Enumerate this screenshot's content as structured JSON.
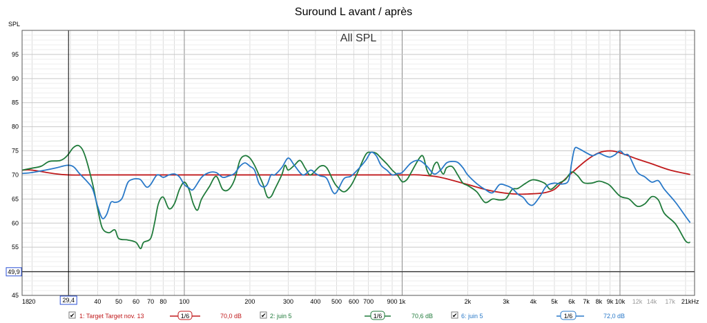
{
  "chart_data": {
    "type": "line",
    "title": "Suround L avant / après",
    "subtitle": "All SPL",
    "ylabel": "SPL",
    "xlabel": "",
    "x_scale": "log",
    "xlim": [
      18,
      22000
    ],
    "ylim": [
      45,
      100
    ],
    "grid": true,
    "y_ticks": [
      {
        "v": 45,
        "label": "45"
      },
      {
        "v": 55,
        "label": "55"
      },
      {
        "v": 60,
        "label": "60"
      },
      {
        "v": 65,
        "label": "65"
      },
      {
        "v": 70,
        "label": "70"
      },
      {
        "v": 75,
        "label": "75"
      },
      {
        "v": 80,
        "label": "80"
      },
      {
        "v": 85,
        "label": "85"
      },
      {
        "v": 90,
        "label": "90"
      },
      {
        "v": 95,
        "label": "95"
      }
    ],
    "x_ticks": [
      {
        "f": 18,
        "label": "18"
      },
      {
        "f": 20,
        "label": "20"
      },
      {
        "f": 40,
        "label": "40"
      },
      {
        "f": 50,
        "label": "50"
      },
      {
        "f": 60,
        "label": "60"
      },
      {
        "f": 70,
        "label": "70"
      },
      {
        "f": 80,
        "label": "80"
      },
      {
        "f": 100,
        "label": "100"
      },
      {
        "f": 200,
        "label": "200"
      },
      {
        "f": 300,
        "label": "300"
      },
      {
        "f": 400,
        "label": "400"
      },
      {
        "f": 500,
        "label": "500"
      },
      {
        "f": 600,
        "label": "600"
      },
      {
        "f": 700,
        "label": "700"
      },
      {
        "f": 900,
        "label": "900"
      },
      {
        "f": 1000,
        "label": "1k"
      },
      {
        "f": 2000,
        "label": "2k"
      },
      {
        "f": 3000,
        "label": "3k"
      },
      {
        "f": 4000,
        "label": "4k"
      },
      {
        "f": 5000,
        "label": "5k"
      },
      {
        "f": 6000,
        "label": "6k"
      },
      {
        "f": 7000,
        "label": "7k"
      },
      {
        "f": 8000,
        "label": "8k"
      },
      {
        "f": 9000,
        "label": "9k"
      },
      {
        "f": 10000,
        "label": "10k"
      },
      {
        "f": 12000,
        "label": "12k",
        "grey": true
      },
      {
        "f": 14000,
        "label": "14k",
        "grey": true
      },
      {
        "f": 17000,
        "label": "17k",
        "grey": true
      },
      {
        "f": 21000,
        "label": "21kHz"
      }
    ],
    "cursor": {
      "x": 29.4,
      "x_label": "29,4",
      "y": 49.9,
      "y_label": "49,9"
    },
    "series": [
      {
        "name": "1: Target Target nov. 13",
        "color": "#c0191b",
        "smoothing": "1/6",
        "level": "70,0 dB",
        "points": [
          [
            18,
            71
          ],
          [
            20,
            71
          ],
          [
            25,
            70.3
          ],
          [
            29.4,
            70
          ],
          [
            40,
            70
          ],
          [
            100,
            70
          ],
          [
            200,
            70
          ],
          [
            500,
            70
          ],
          [
            1000,
            70
          ],
          [
            1200,
            70
          ],
          [
            1500,
            69.5
          ],
          [
            2000,
            68
          ],
          [
            2500,
            66.8
          ],
          [
            3000,
            66.2
          ],
          [
            3500,
            66
          ],
          [
            4000,
            66.1
          ],
          [
            4500,
            66.3
          ],
          [
            5000,
            67
          ],
          [
            5500,
            68.8
          ],
          [
            6000,
            70.4
          ],
          [
            7000,
            73
          ],
          [
            8000,
            74.6
          ],
          [
            9000,
            75
          ],
          [
            10000,
            74.6
          ],
          [
            12000,
            73.3
          ],
          [
            14000,
            72.3
          ],
          [
            17000,
            71
          ],
          [
            21000,
            70.1
          ]
        ]
      },
      {
        "name": "2: juin 5",
        "color": "#1f7a3a",
        "smoothing": "1/6",
        "level": "70,6 dB",
        "points": [
          [
            18,
            71
          ],
          [
            20,
            71.4
          ],
          [
            22,
            71.8
          ],
          [
            24,
            72.8
          ],
          [
            27,
            73
          ],
          [
            29,
            74
          ],
          [
            31,
            75.7
          ],
          [
            33,
            76
          ],
          [
            35,
            74
          ],
          [
            38,
            68
          ],
          [
            40,
            63
          ],
          [
            42,
            59
          ],
          [
            45,
            58
          ],
          [
            48,
            58.6
          ],
          [
            50,
            56.8
          ],
          [
            55,
            56.5
          ],
          [
            60,
            56
          ],
          [
            63,
            54.7
          ],
          [
            65,
            56
          ],
          [
            70,
            56.8
          ],
          [
            73,
            60
          ],
          [
            76,
            64
          ],
          [
            80,
            65.4
          ],
          [
            85,
            63
          ],
          [
            90,
            64
          ],
          [
            95,
            67
          ],
          [
            100,
            68.5
          ],
          [
            105,
            67
          ],
          [
            110,
            64
          ],
          [
            115,
            62.7
          ],
          [
            120,
            65
          ],
          [
            130,
            67.5
          ],
          [
            140,
            69.7
          ],
          [
            150,
            67
          ],
          [
            160,
            67
          ],
          [
            170,
            69
          ],
          [
            180,
            73
          ],
          [
            190,
            74
          ],
          [
            200,
            73.5
          ],
          [
            210,
            72
          ],
          [
            220,
            70
          ],
          [
            230,
            68
          ],
          [
            240,
            65.5
          ],
          [
            250,
            65.5
          ],
          [
            260,
            67
          ],
          [
            280,
            70
          ],
          [
            290,
            72
          ],
          [
            300,
            71
          ],
          [
            320,
            72
          ],
          [
            340,
            73
          ],
          [
            360,
            71.3
          ],
          [
            380,
            70
          ],
          [
            420,
            71.8
          ],
          [
            450,
            71.5
          ],
          [
            480,
            69
          ],
          [
            500,
            67.7
          ],
          [
            540,
            66.5
          ],
          [
            580,
            67.7
          ],
          [
            620,
            70.2
          ],
          [
            680,
            74.2
          ],
          [
            720,
            74.7
          ],
          [
            760,
            74.5
          ],
          [
            800,
            73.5
          ],
          [
            850,
            72.3
          ],
          [
            900,
            71
          ],
          [
            950,
            70
          ],
          [
            1000,
            68.6
          ],
          [
            1050,
            69
          ],
          [
            1100,
            70.5
          ],
          [
            1200,
            73.5
          ],
          [
            1250,
            73.8
          ],
          [
            1300,
            71
          ],
          [
            1350,
            70
          ],
          [
            1400,
            72
          ],
          [
            1450,
            72.6
          ],
          [
            1500,
            71
          ],
          [
            1550,
            70.2
          ],
          [
            1600,
            71.5
          ],
          [
            1700,
            71.7
          ],
          [
            1800,
            70
          ],
          [
            1900,
            68.3
          ],
          [
            2000,
            67.8
          ],
          [
            2200,
            66.5
          ],
          [
            2400,
            64.3
          ],
          [
            2600,
            65
          ],
          [
            2800,
            64.8
          ],
          [
            3000,
            65.1
          ],
          [
            3200,
            67
          ],
          [
            3400,
            67.2
          ],
          [
            3700,
            68.3
          ],
          [
            4000,
            69
          ],
          [
            4500,
            68.3
          ],
          [
            4800,
            67
          ],
          [
            5200,
            68.2
          ],
          [
            5600,
            69
          ],
          [
            6000,
            70.6
          ],
          [
            6400,
            69.8
          ],
          [
            6800,
            68.4
          ],
          [
            7400,
            68.3
          ],
          [
            8000,
            68.7
          ],
          [
            8500,
            68.4
          ],
          [
            9000,
            67.8
          ],
          [
            10000,
            65.6
          ],
          [
            11000,
            65
          ],
          [
            12000,
            63.5
          ],
          [
            13000,
            64
          ],
          [
            14000,
            65.5
          ],
          [
            15000,
            64.8
          ],
          [
            16000,
            62
          ],
          [
            18000,
            59.8
          ],
          [
            20000,
            56.3
          ],
          [
            21000,
            56
          ]
        ]
      },
      {
        "name": "6: juin 5",
        "color": "#2878c8",
        "smoothing": "1/6",
        "level": "72,0 dB",
        "points": [
          [
            18,
            70.3
          ],
          [
            20,
            70.5
          ],
          [
            23,
            71
          ],
          [
            26,
            71.5
          ],
          [
            29,
            72
          ],
          [
            31,
            71.7
          ],
          [
            33,
            70.3
          ],
          [
            36,
            68.5
          ],
          [
            38,
            67
          ],
          [
            40,
            63.5
          ],
          [
            42,
            61
          ],
          [
            44,
            61.8
          ],
          [
            46,
            64.3
          ],
          [
            48,
            64.3
          ],
          [
            50,
            64.5
          ],
          [
            52,
            65.3
          ],
          [
            55,
            68.4
          ],
          [
            58,
            69.1
          ],
          [
            60,
            69.2
          ],
          [
            63,
            69
          ],
          [
            67,
            67.5
          ],
          [
            70,
            68
          ],
          [
            75,
            70
          ],
          [
            80,
            69.5
          ],
          [
            85,
            70
          ],
          [
            90,
            70.2
          ],
          [
            95,
            69.6
          ],
          [
            100,
            68
          ],
          [
            105,
            67.3
          ],
          [
            110,
            67
          ],
          [
            120,
            69.5
          ],
          [
            130,
            70.5
          ],
          [
            140,
            70.5
          ],
          [
            150,
            69.5
          ],
          [
            160,
            69.8
          ],
          [
            170,
            70.3
          ],
          [
            180,
            71.8
          ],
          [
            190,
            72.5
          ],
          [
            200,
            71.8
          ],
          [
            210,
            71
          ],
          [
            220,
            68.3
          ],
          [
            230,
            67.5
          ],
          [
            240,
            68
          ],
          [
            250,
            70
          ],
          [
            260,
            70
          ],
          [
            280,
            71.5
          ],
          [
            300,
            73.5
          ],
          [
            320,
            72
          ],
          [
            350,
            70
          ],
          [
            380,
            71
          ],
          [
            400,
            70.3
          ],
          [
            420,
            69.8
          ],
          [
            450,
            69.3
          ],
          [
            480,
            66.5
          ],
          [
            500,
            66.4
          ],
          [
            540,
            69.2
          ],
          [
            580,
            69.7
          ],
          [
            620,
            70.9
          ],
          [
            680,
            73
          ],
          [
            720,
            74.7
          ],
          [
            760,
            74
          ],
          [
            800,
            72
          ],
          [
            850,
            71
          ],
          [
            900,
            70
          ],
          [
            950,
            70.3
          ],
          [
            1000,
            70.5
          ],
          [
            1100,
            72.5
          ],
          [
            1200,
            73
          ],
          [
            1300,
            71.8
          ],
          [
            1400,
            70.2
          ],
          [
            1500,
            71
          ],
          [
            1600,
            72.5
          ],
          [
            1700,
            72.8
          ],
          [
            1800,
            72.6
          ],
          [
            1900,
            71.5
          ],
          [
            2000,
            70
          ],
          [
            2200,
            68.2
          ],
          [
            2400,
            67
          ],
          [
            2600,
            66.3
          ],
          [
            2800,
            68
          ],
          [
            3000,
            67.8
          ],
          [
            3200,
            67.2
          ],
          [
            3400,
            66
          ],
          [
            3600,
            65.3
          ],
          [
            3800,
            64
          ],
          [
            4000,
            63.8
          ],
          [
            4300,
            65.6
          ],
          [
            4600,
            67.7
          ],
          [
            5000,
            68.3
          ],
          [
            5400,
            68.1
          ],
          [
            5800,
            68.8
          ],
          [
            6000,
            72.5
          ],
          [
            6200,
            75.5
          ],
          [
            6500,
            75.4
          ],
          [
            7000,
            74.6
          ],
          [
            7500,
            74
          ],
          [
            8000,
            74.5
          ],
          [
            8500,
            74
          ],
          [
            9000,
            73.7
          ],
          [
            9500,
            74.2
          ],
          [
            10000,
            75
          ],
          [
            10500,
            74.2
          ],
          [
            11000,
            74
          ],
          [
            12000,
            70.6
          ],
          [
            13000,
            69.6
          ],
          [
            14000,
            68.5
          ],
          [
            15000,
            68.8
          ],
          [
            16000,
            67
          ],
          [
            18000,
            64.3
          ],
          [
            20000,
            61.4
          ],
          [
            21000,
            60.1
          ]
        ]
      }
    ]
  },
  "legend": [
    {
      "checkbox": "✔",
      "name": "1: Target Target nov. 13",
      "smoothing": "1/6",
      "level": "70,0 dB",
      "color": "#c0191b"
    },
    {
      "checkbox": "✔",
      "name": "2: juin 5",
      "smoothing": "1/6",
      "level": "70,6 dB",
      "color": "#1f7a3a"
    },
    {
      "checkbox": "✔",
      "name": "6: juin 5",
      "smoothing": "1/6",
      "level": "72,0 dB",
      "color": "#2878c8"
    }
  ]
}
